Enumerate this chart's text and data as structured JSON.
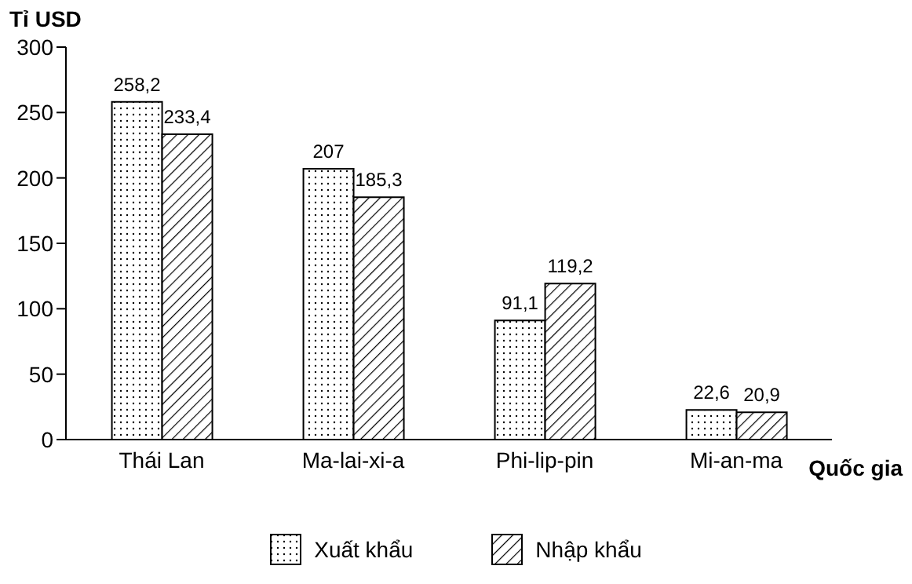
{
  "chart_data": {
    "type": "bar",
    "ylabel": "Tỉ USD",
    "xlabel": "Quốc gia",
    "categories": [
      "Thái Lan",
      "Ma-lai-xi-a",
      "Phi-lip-pin",
      "Mi-an-ma"
    ],
    "series": [
      {
        "name": "Xuất khẩu",
        "color": "#000000",
        "values": [
          258.2,
          207,
          91.1,
          22.6
        ],
        "value_labels": [
          "258,2",
          "207",
          "91,1",
          "22,6"
        ]
      },
      {
        "name": "Nhập khẩu",
        "color": "#000000",
        "values": [
          233.4,
          185.3,
          119.2,
          20.9
        ],
        "value_labels": [
          "233,4",
          "185,3",
          "119,2",
          "20,9"
        ]
      }
    ],
    "ylim": [
      0,
      300
    ],
    "yticks": [
      0,
      50,
      100,
      150,
      200,
      250,
      300
    ],
    "grid": false,
    "legend": "bottom"
  }
}
